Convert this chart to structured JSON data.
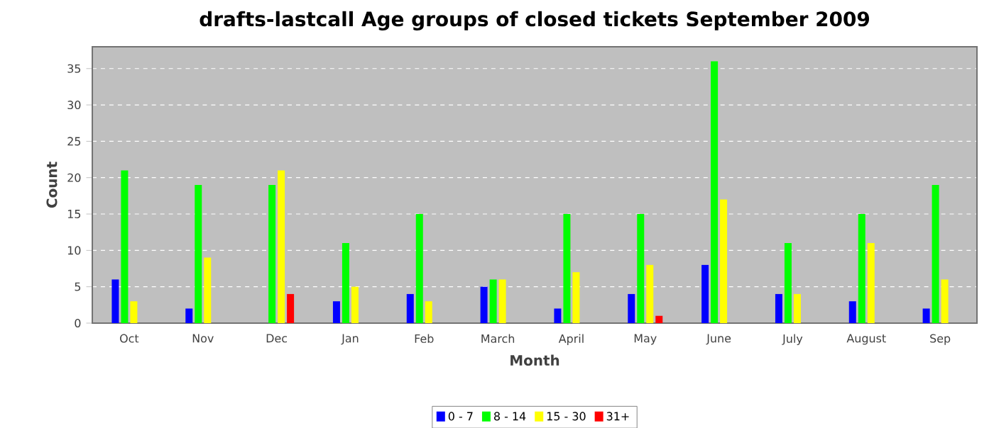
{
  "chart_data": {
    "type": "bar",
    "title": "drafts-lastcall Age groups of closed tickets September 2009",
    "xlabel": "Month",
    "ylabel": "Count",
    "categories": [
      "Oct",
      "Nov",
      "Dec",
      "Jan",
      "Feb",
      "March",
      "April",
      "May",
      "June",
      "July",
      "August",
      "Sep"
    ],
    "series": [
      {
        "name": "0 - 7",
        "color": "#0000ff",
        "values": [
          6,
          2,
          0,
          3,
          4,
          5,
          2,
          4,
          8,
          4,
          3,
          2
        ]
      },
      {
        "name": "8 - 14",
        "color": "#00ff00",
        "values": [
          21,
          19,
          19,
          11,
          15,
          6,
          15,
          15,
          36,
          11,
          15,
          19
        ]
      },
      {
        "name": "15 - 30",
        "color": "#ffff00",
        "values": [
          3,
          9,
          21,
          5,
          3,
          6,
          7,
          8,
          17,
          4,
          11,
          6
        ]
      },
      {
        "name": "31+",
        "color": "#ff0000",
        "values": [
          0,
          0,
          4,
          0,
          0,
          0,
          0,
          1,
          0,
          0,
          0,
          0
        ]
      }
    ],
    "ylim": [
      0,
      38
    ],
    "yticks": [
      0,
      5,
      10,
      15,
      20,
      25,
      30,
      35
    ],
    "grid": "y",
    "legend": "bottom"
  }
}
